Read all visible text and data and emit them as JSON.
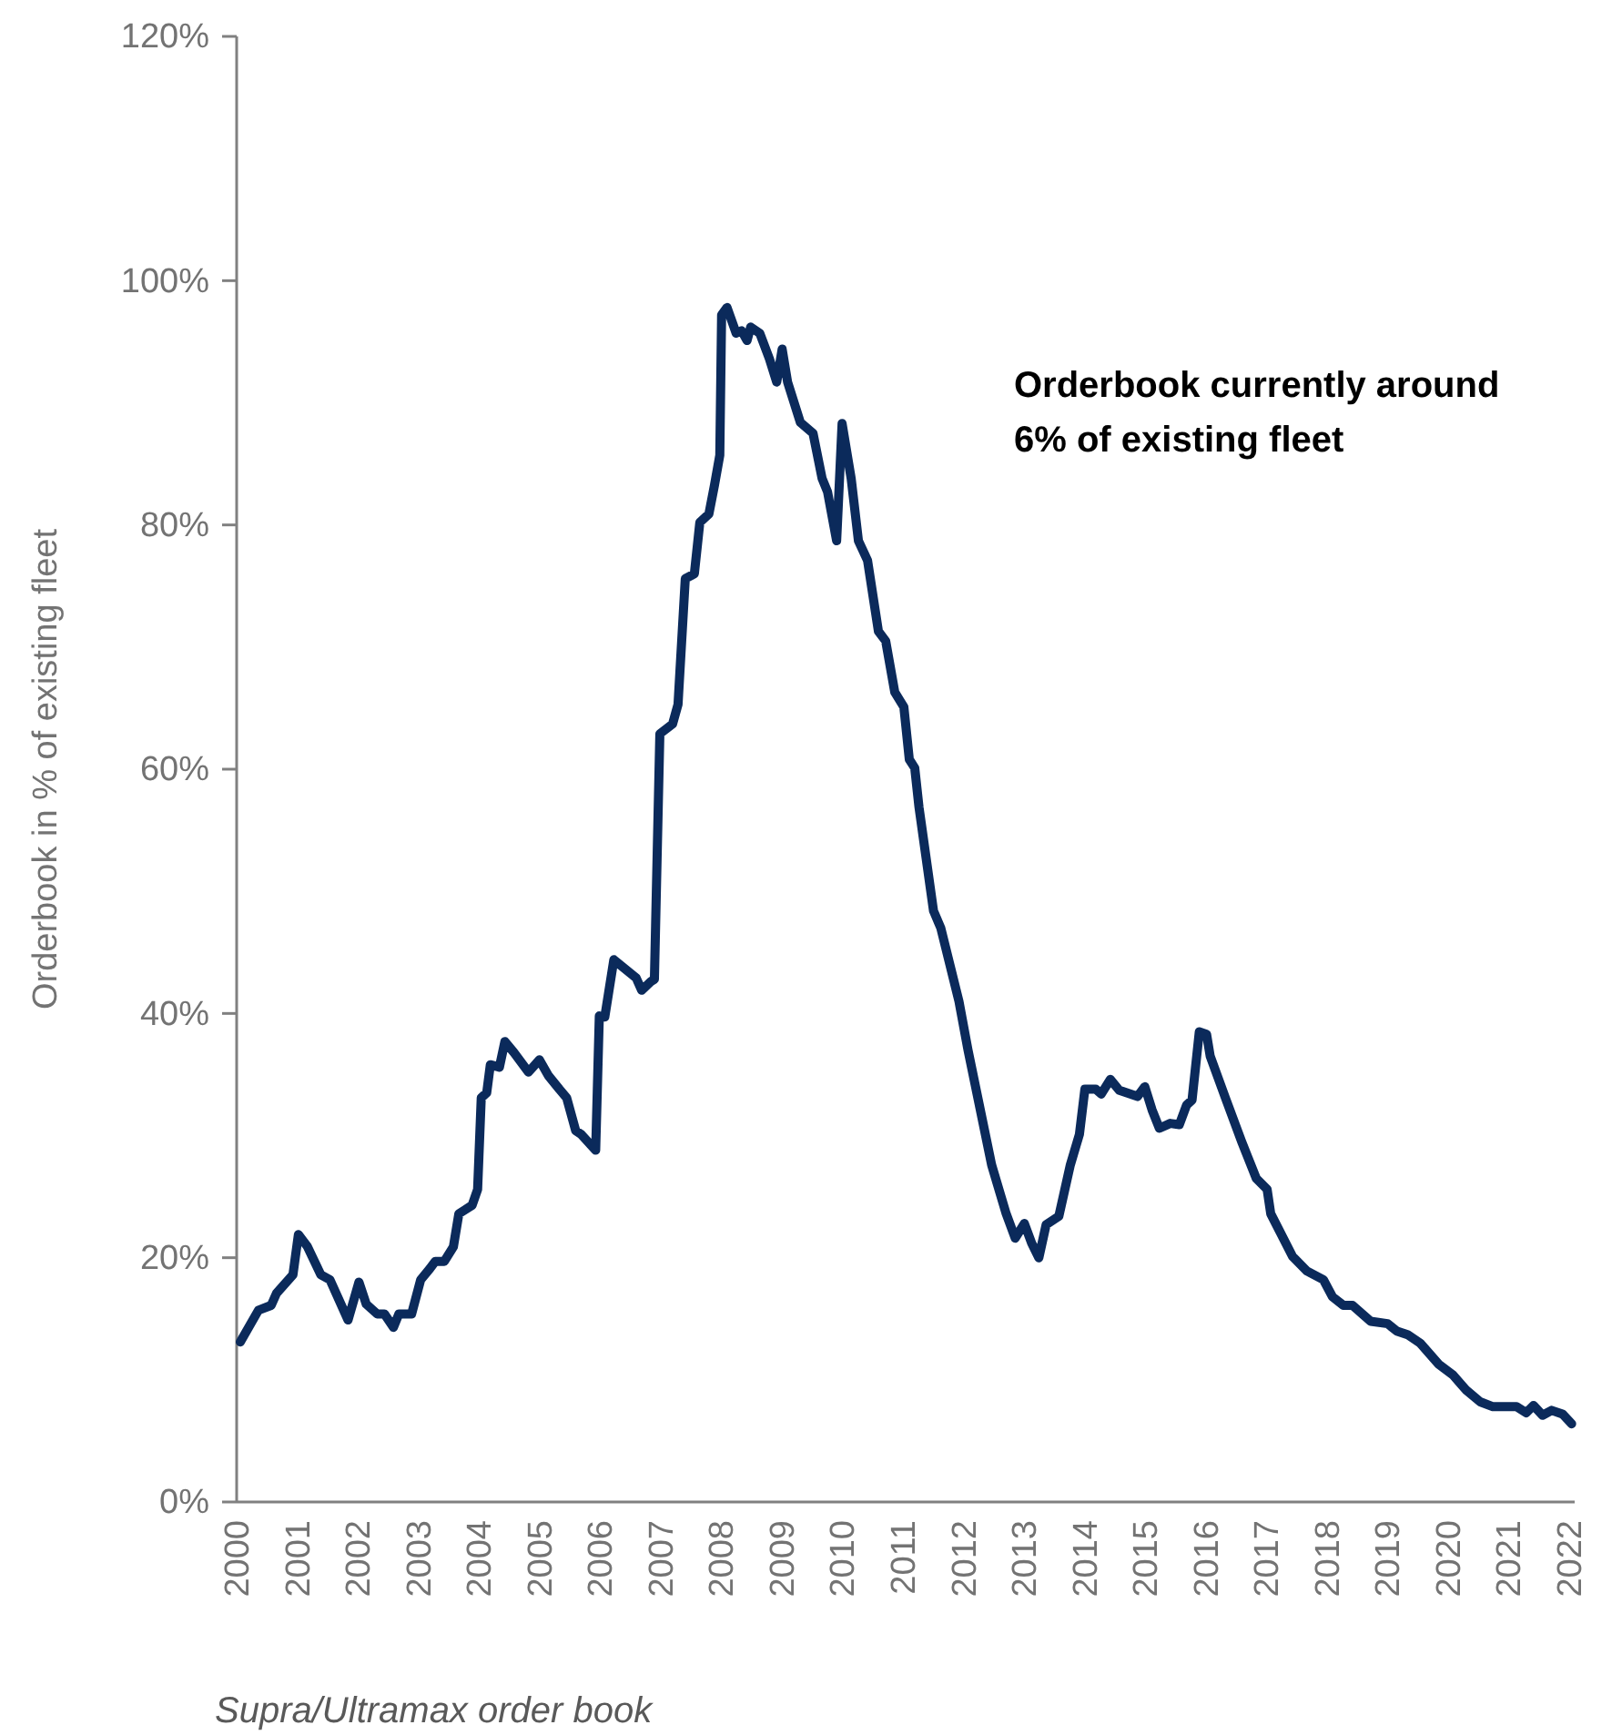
{
  "chart_data": {
    "type": "line",
    "ylabel": "Orderbook in % of existing fleet",
    "annotations": [
      "Orderbook currently around 6% of existing fleet",
      "Supra/Ultramax order book"
    ],
    "xlim": [
      2000,
      2022.1
    ],
    "xticks": [
      2000,
      2001,
      2002,
      2003,
      2004,
      2005,
      2006,
      2007,
      2008,
      2009,
      2010,
      2011,
      2012,
      2013,
      2014,
      2015,
      2016,
      2017,
      2018,
      2019,
      2020,
      2021,
      2022
    ],
    "ylim": [
      0,
      120
    ],
    "yticks": [
      {
        "value": 0,
        "label": "0%"
      },
      {
        "value": 20,
        "label": "20%"
      },
      {
        "value": 40,
        "label": "40%"
      },
      {
        "value": 60,
        "label": "60%"
      },
      {
        "value": 80,
        "label": "80%"
      },
      {
        "value": 100,
        "label": "100%"
      },
      {
        "value": 120,
        "label": "120%"
      }
    ],
    "grid": false,
    "marker": "none",
    "line_style": "solid",
    "series": [
      {
        "color": "#0b2a5b",
        "x": [
          2000.06,
          2000.36,
          2000.57,
          2000.66,
          2000.93,
          2001.02,
          2001.17,
          2001.39,
          2001.54,
          2001.84,
          2002.02,
          2002.14,
          2002.32,
          2002.44,
          2002.59,
          2002.68,
          2002.89,
          2003.04,
          2003.19,
          2003.28,
          2003.43,
          2003.58,
          2003.67,
          2003.89,
          2003.98,
          2004.04,
          2004.13,
          2004.19,
          2004.34,
          2004.43,
          2004.58,
          2004.82,
          2005.0,
          2005.15,
          2005.33,
          2005.45,
          2005.6,
          2005.69,
          2005.93,
          2005.99,
          2006.08,
          2006.23,
          2006.6,
          2006.69,
          2006.84,
          2006.9,
          2006.99,
          2007.2,
          2007.29,
          2007.41,
          2007.56,
          2007.65,
          2007.8,
          2007.89,
          2007.98,
          2008.01,
          2008.1,
          2008.25,
          2008.34,
          2008.43,
          2008.49,
          2008.64,
          2008.8,
          2008.92,
          2009.01,
          2009.1,
          2009.31,
          2009.52,
          2009.67,
          2009.76,
          2009.91,
          2010.0,
          2010.15,
          2010.27,
          2010.42,
          2010.6,
          2010.72,
          2010.87,
          2011.02,
          2011.11,
          2011.2,
          2011.27,
          2011.51,
          2011.63,
          2011.78,
          2011.93,
          2012.08,
          2012.47,
          2012.71,
          2012.86,
          2013.01,
          2013.13,
          2013.25,
          2013.37,
          2013.58,
          2013.77,
          2013.92,
          2014.01,
          2014.19,
          2014.28,
          2014.43,
          2014.58,
          2014.88,
          2015.0,
          2015.12,
          2015.24,
          2015.42,
          2015.57,
          2015.69,
          2015.78,
          2015.9,
          2016.02,
          2016.08,
          2016.33,
          2016.6,
          2016.84,
          2017.02,
          2017.08,
          2017.44,
          2017.68,
          2017.95,
          2018.1,
          2018.28,
          2018.43,
          2018.73,
          2019.01,
          2019.16,
          2019.34,
          2019.55,
          2019.85,
          2020.09,
          2020.3,
          2020.54,
          2020.75,
          2021.14,
          2021.3,
          2021.42,
          2021.57,
          2021.72,
          2021.9,
          2022.05
        ],
        "values": [
          13.1,
          15.7,
          16.1,
          17.1,
          18.6,
          21.9,
          20.9,
          18.6,
          18.2,
          14.9,
          18.0,
          16.2,
          15.4,
          15.4,
          14.3,
          15.4,
          15.4,
          18.2,
          19.1,
          19.7,
          19.7,
          20.9,
          23.6,
          24.3,
          25.6,
          33.1,
          33.5,
          35.8,
          35.6,
          37.7,
          36.8,
          35.2,
          36.2,
          34.9,
          33.8,
          33.1,
          30.4,
          30.1,
          28.8,
          39.8,
          39.7,
          44.4,
          42.9,
          41.9,
          42.6,
          42.8,
          62.9,
          63.7,
          65.3,
          75.6,
          76.0,
          80.2,
          80.9,
          83.2,
          85.7,
          97.2,
          97.8,
          95.7,
          95.9,
          95.1,
          96.2,
          95.7,
          93.6,
          91.7,
          94.4,
          91.7,
          88.4,
          87.5,
          83.8,
          82.7,
          78.7,
          88.3,
          83.8,
          78.7,
          77.1,
          71.3,
          70.5,
          66.3,
          65.1,
          60.8,
          60.1,
          56.9,
          48.4,
          47.0,
          44.0,
          41.0,
          37.0,
          27.6,
          23.6,
          21.6,
          22.8,
          21.2,
          20.0,
          22.7,
          23.4,
          27.6,
          30.1,
          33.8,
          33.8,
          33.4,
          34.6,
          33.7,
          33.2,
          34.0,
          32.1,
          30.6,
          31.0,
          30.9,
          32.5,
          32.9,
          38.5,
          38.3,
          36.5,
          33.1,
          29.5,
          26.5,
          25.6,
          23.6,
          20.1,
          18.9,
          18.2,
          16.8,
          16.1,
          16.1,
          14.8,
          14.6,
          14.0,
          13.7,
          13.0,
          11.3,
          10.4,
          9.2,
          8.2,
          7.8,
          7.8,
          7.3,
          7.9,
          7.1,
          7.5,
          7.2,
          6.4
        ]
      }
    ]
  }
}
